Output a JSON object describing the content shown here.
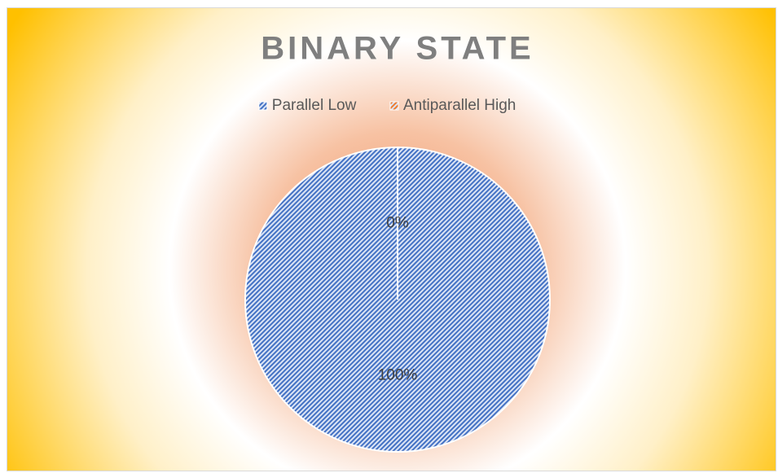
{
  "chart_data": {
    "type": "pie",
    "title": "BINARY STATE",
    "categories": [
      "Parallel Low",
      "Antiparallel High"
    ],
    "values": [
      100,
      0
    ],
    "value_labels": [
      "100%",
      "0%"
    ],
    "colors": [
      "#4472c4",
      "#ed7d31"
    ],
    "legend": "top"
  }
}
